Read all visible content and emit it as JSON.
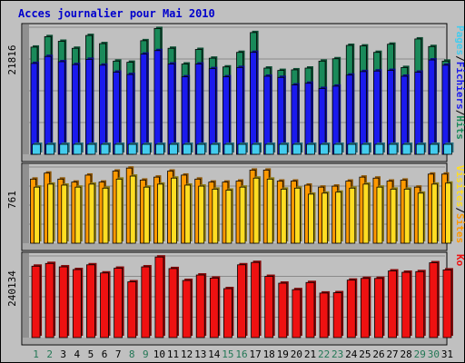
{
  "chart_data": {
    "type": "bar",
    "title": "Acces journalier pour Mai 2010",
    "colors": {
      "background": "#c0c0c0",
      "title": "#0000cc",
      "hits": "#1a8a5a",
      "files": "#1a1aee",
      "pages": "#44ccee",
      "visits": "#ffdd22",
      "sites": "#ff9900",
      "kb": "#ee1111",
      "weekend_day": "#227755",
      "weekday": "#000000"
    },
    "categories": [
      "1",
      "2",
      "3",
      "4",
      "5",
      "6",
      "7",
      "8",
      "9",
      "10",
      "11",
      "12",
      "13",
      "14",
      "15",
      "16",
      "17",
      "18",
      "19",
      "20",
      "21",
      "22",
      "23",
      "24",
      "25",
      "26",
      "27",
      "28",
      "29",
      "30",
      "31"
    ],
    "weekend_days": [
      "1",
      "2",
      "8",
      "9",
      "15",
      "16",
      "22",
      "23",
      "29",
      "30"
    ],
    "panels": [
      {
        "id": "top",
        "axis_label": "21816",
        "ylim": [
          0,
          21816
        ],
        "legend": [
          {
            "text": "Pages",
            "color": "#44ccee"
          },
          {
            "text": "/",
            "color": "#000000"
          },
          {
            "text": "Fichiers",
            "color": "#1a1aee"
          },
          {
            "text": "/",
            "color": "#000000"
          },
          {
            "text": "Hits",
            "color": "#1a8a5a"
          }
        ],
        "series": [
          {
            "name": "Hits",
            "color": "#1a8a5a",
            "values": [
              18400,
              20200,
              19400,
              18200,
              20400,
              19000,
              16000,
              15800,
              19500,
              21600,
              18200,
              15500,
              18000,
              16500,
              15000,
              17500,
              20900,
              14800,
              14400,
              14500,
              14800,
              16000,
              16400,
              18700,
              18600,
              17500,
              18900,
              14900,
              19800,
              18500,
              16000
            ]
          },
          {
            "name": "Fichiers",
            "color": "#1a1aee",
            "values": [
              15600,
              16800,
              15900,
              15400,
              16300,
              15300,
              14100,
              13700,
              17200,
              17800,
              15500,
              13300,
              15500,
              14700,
              13300,
              14900,
              17500,
              13400,
              13200,
              11900,
              12200,
              11300,
              11700,
              13600,
              14200,
              14300,
              14400,
              13400,
              14100,
              16200,
              15300
            ]
          },
          {
            "name": "Pages",
            "color": "#44ccee",
            "values": [
              1600,
              1600,
              1400,
              1400,
              1500,
              1400,
              1500,
              1200,
              1400,
              1700,
              1400,
              1200,
              1300,
              1300,
              1300,
              1400,
              1600,
              1200,
              1200,
              1100,
              1200,
              1000,
              1000,
              1400,
              1300,
              1200,
              1300,
              1500,
              1300,
              1500,
              1400
            ]
          }
        ]
      },
      {
        "id": "middle",
        "axis_label": "761",
        "ylim": [
          0,
          761
        ],
        "legend": [
          {
            "text": "Visites",
            "color": "#ffdd22"
          },
          {
            "text": "/",
            "color": "#000000"
          },
          {
            "text": "Sites",
            "color": "#ff9900"
          }
        ],
        "series": [
          {
            "name": "Sites",
            "color": "#ff9900",
            "values": [
              640,
              700,
              640,
              610,
              680,
              610,
              720,
              750,
              630,
              660,
              720,
              680,
              640,
              610,
              610,
              620,
              730,
              730,
              620,
              620,
              580,
              560,
              570,
              620,
              660,
              650,
              620,
              630,
              560,
              690,
              690
            ]
          },
          {
            "name": "Visites",
            "color": "#ffdd22",
            "values": [
              560,
              590,
              580,
              560,
              590,
              550,
              640,
              670,
              560,
              590,
              650,
              580,
              570,
              540,
              530,
              560,
              650,
              640,
              540,
              550,
              490,
              500,
              510,
              550,
              590,
              560,
              540,
              540,
              500,
              590,
              600
            ]
          }
        ]
      },
      {
        "id": "bottom",
        "axis_label": "240134",
        "ylim": [
          0,
          240134
        ],
        "legend": [
          {
            "text": "Ko",
            "color": "#ee1111"
          }
        ],
        "series": [
          {
            "name": "Ko",
            "color": "#ee1111",
            "values": [
              210000,
              218000,
              208000,
              200000,
              214000,
              190000,
              204000,
              164000,
              208000,
              237000,
              203000,
              168000,
              184000,
              175000,
              144000,
              214000,
              221000,
              180000,
              160000,
              141000,
              162000,
              131000,
              132000,
              169000,
              174000,
              174000,
              196000,
              192000,
              194000,
              220000,
              199000
            ]
          }
        ]
      }
    ]
  }
}
